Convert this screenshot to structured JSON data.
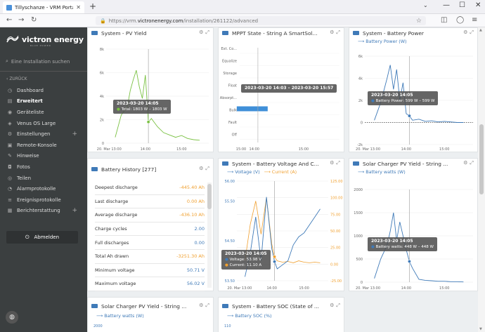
{
  "browser": {
    "tab_title": "Tillyschanze - VRM Portal",
    "url_prefix": "https://vrm.",
    "url_domain": "victronenergy.com",
    "url_path": "/installation/261122/advanced"
  },
  "sidebar": {
    "brand": "victron energy",
    "tagline": "BLUE POWER",
    "search_placeholder": "Eine Installation suchen",
    "back_label": "ZURÜCK",
    "items": [
      {
        "label": "Dashboard",
        "icon": "speedometer-icon",
        "glyph": "◷"
      },
      {
        "label": "Erweitert",
        "icon": "chart-icon",
        "glyph": "▤"
      },
      {
        "label": "Geräteliste",
        "icon": "pin-icon",
        "glyph": "◉"
      },
      {
        "label": "Venus OS Large",
        "icon": "node-icon",
        "glyph": "◈"
      },
      {
        "label": "Einstellungen",
        "icon": "gear-icon",
        "glyph": "⚙"
      },
      {
        "label": "Remote-Konsole",
        "icon": "console-icon",
        "glyph": "▣"
      },
      {
        "label": "Hinweise",
        "icon": "note-icon",
        "glyph": "✎"
      },
      {
        "label": "Fotos",
        "icon": "camera-icon",
        "glyph": "◘"
      },
      {
        "label": "Teilen",
        "icon": "share-icon",
        "glyph": "◎"
      },
      {
        "label": "Alarmprotokolle",
        "icon": "bell-icon",
        "glyph": "◔"
      },
      {
        "label": "Ereignisprotokolle",
        "icon": "list-icon",
        "glyph": "≡"
      },
      {
        "label": "Berichterstattung",
        "icon": "report-icon",
        "glyph": "▦"
      }
    ],
    "logout_label": "Abmelden"
  },
  "colors": {
    "accent": "#3f7ab8",
    "orange": "#f0a030",
    "green": "#7ac143",
    "sidebar": "#3b3f40"
  },
  "widgets": {
    "pv_yield": {
      "title": "System - PV Yield",
      "tooltip_time": "2023-03-20 14:05",
      "tooltip_value": "Total: 1803 W – 1803 W"
    },
    "mppt_state": {
      "title": "MPPT State - String A SmartSol...",
      "tooltip": "2023-03-20 14:03 – 2023-03-20 15:57"
    },
    "battery_power": {
      "title": "System - Battery Power",
      "legend": "Battery Power (W)",
      "tooltip_time": "2023-03-20 14:05",
      "tooltip_value": "Battery Power: 599 W – 599 W"
    },
    "battery_history": {
      "title": "Battery History [277]",
      "rows": [
        {
          "k": "Deepest discharge",
          "v": "-445.40 Ah",
          "c": "orange"
        },
        {
          "k": "Last discharge",
          "v": "0.00 Ah",
          "c": "orange"
        },
        {
          "k": "Average discharge",
          "v": "-436.10 Ah",
          "c": "orange"
        },
        {
          "k": "Charge cycles",
          "v": "2.00",
          "c": "blue"
        },
        {
          "k": "Full discharges",
          "v": "0.00",
          "c": "blue"
        },
        {
          "k": "Total Ah drawn",
          "v": "-3251.30 Ah",
          "c": "orange"
        },
        {
          "k": "Minimum voltage",
          "v": "50.71 V",
          "c": "blue"
        },
        {
          "k": "Maximum voltage",
          "v": "56.02 V",
          "c": "blue"
        }
      ]
    },
    "battery_vc": {
      "title": "System - Battery Voltage And C...",
      "legend_voltage": "Voltage (V)",
      "legend_current": "Current (A)",
      "tooltip_time": "2023-03-20 14:05",
      "tooltip_voltage": "Voltage: 53.98 V",
      "tooltip_current": "Current: 11.10 A"
    },
    "solar_pv_a": {
      "title": "Solar Charger PV Yield - String ...",
      "legend": "Battery watts (W)",
      "tooltip_time": "2023-03-20 14:05",
      "tooltip_value": "Battery watts: 448 W – 448 W"
    },
    "solar_pv_b": {
      "title": "Solar Charger PV Yield - String ...",
      "legend": "Battery watts (W)",
      "y_top": "2000"
    },
    "battery_soc": {
      "title": "System - Battery SOC (State of ...",
      "legend": "Battery SOC (%)",
      "y_top": "110"
    }
  },
  "chart_data": [
    {
      "type": "line",
      "title": "System - PV Yield",
      "x_ticks": [
        "20. Mar 13:00",
        "14:00",
        "15:00"
      ],
      "y_ticks": [
        "0",
        "2k",
        "4k",
        "6k",
        "8k"
      ],
      "ylim": [
        0,
        8000
      ],
      "series": [
        {
          "x": [
            "13:10",
            "13:20",
            "13:30",
            "13:35",
            "13:40",
            "13:45",
            "13:50",
            "13:55",
            "14:00",
            "14:05",
            "14:10",
            "14:20",
            "14:30",
            "14:40",
            "14:50",
            "15:00",
            "15:10",
            "15:20",
            "15:30"
          ],
          "values": [
            500,
            2400,
            3100,
            4500,
            5400,
            6200,
            4800,
            3800,
            5800,
            1803,
            2100,
            1400,
            900,
            700,
            500,
            650,
            400,
            300,
            250
          ]
        }
      ]
    },
    {
      "type": "bar",
      "title": "MPPT State - String A SmartSol...",
      "categories": [
        "Ext. Co...",
        "Equalize",
        "Storage",
        "Float",
        "Absorpt...",
        "Bulk",
        "Fault",
        "Off"
      ],
      "x_ticks": [
        "15:00",
        "14:00",
        "15:00"
      ],
      "range_start": "14:03",
      "range_end": "15:57",
      "state": "Bulk"
    },
    {
      "type": "line",
      "title": "System - Battery Power",
      "x_ticks": [
        "20. Mar 13:00",
        "14:00",
        "15:00"
      ],
      "y_ticks": [
        "-2k",
        "0",
        "2k",
        "4k",
        "6k"
      ],
      "ylim": [
        -2000,
        6000
      ],
      "series": [
        {
          "name": "Battery Power (W)",
          "x": [
            "13:10",
            "13:20",
            "13:30",
            "13:35",
            "13:40",
            "13:45",
            "13:50",
            "13:55",
            "14:00",
            "14:05",
            "14:10",
            "14:20",
            "14:30",
            "14:40",
            "14:50",
            "15:00",
            "15:10",
            "15:20",
            "15:30"
          ],
          "values": [
            200,
            1800,
            4000,
            5200,
            3000,
            4800,
            2000,
            3600,
            800,
            599,
            200,
            300,
            100,
            150,
            50,
            100,
            50,
            0,
            0
          ]
        }
      ]
    },
    {
      "type": "line",
      "title": "System - Battery Voltage And C...",
      "x_ticks": [
        "20. Mar 13:00",
        "14:00",
        "15:00"
      ],
      "y_left_ticks": [
        "53.50",
        "54.50",
        "55.50",
        "56.00"
      ],
      "y_right_ticks": [
        "-25.00",
        "0.00",
        "25.00",
        "50.00",
        "75.00",
        "100.00",
        "125.00"
      ],
      "series": [
        {
          "name": "Voltage (V)",
          "x": [
            "13:10",
            "13:20",
            "13:30",
            "13:40",
            "13:50",
            "14:00",
            "14:05",
            "14:10",
            "14:20",
            "14:30",
            "14:40",
            "14:50",
            "15:00",
            "15:10",
            "15:20",
            "15:30"
          ],
          "values": [
            53.6,
            54.2,
            55.1,
            54.0,
            55.6,
            54.3,
            53.98,
            53.8,
            53.9,
            54.0,
            54.4,
            54.6,
            54.7,
            54.9,
            55.1,
            55.3
          ]
        },
        {
          "name": "Current (A)",
          "x": [
            "13:10",
            "13:20",
            "13:30",
            "13:40",
            "13:50",
            "14:00",
            "14:05",
            "14:10",
            "14:20",
            "14:30",
            "14:40",
            "14:50",
            "15:00",
            "15:10",
            "15:20",
            "15:30"
          ],
          "values": [
            5,
            60,
            95,
            45,
            100,
            30,
            11.1,
            5,
            3,
            4,
            2,
            5,
            3,
            2,
            3,
            2
          ]
        }
      ]
    },
    {
      "type": "line",
      "title": "Solar Charger PV Yield - String ...",
      "x_ticks": [
        "20. Mar 13:00",
        "14:00",
        "15:00"
      ],
      "y_ticks": [
        "0",
        "500",
        "1000",
        "1500",
        "2000"
      ],
      "ylim": [
        0,
        2000
      ],
      "series": [
        {
          "name": "Battery watts (W)",
          "x": [
            "13:10",
            "13:20",
            "13:30",
            "13:35",
            "13:40",
            "13:45",
            "13:50",
            "13:55",
            "14:00",
            "14:05",
            "14:10",
            "14:20",
            "14:30",
            "14:40",
            "14:50",
            "15:00",
            "15:10",
            "15:20",
            "15:30"
          ],
          "values": [
            80,
            500,
            800,
            1100,
            1500,
            900,
            1300,
            1000,
            700,
            448,
            300,
            60,
            40,
            30,
            20,
            20,
            10,
            10,
            5
          ]
        }
      ]
    }
  ]
}
